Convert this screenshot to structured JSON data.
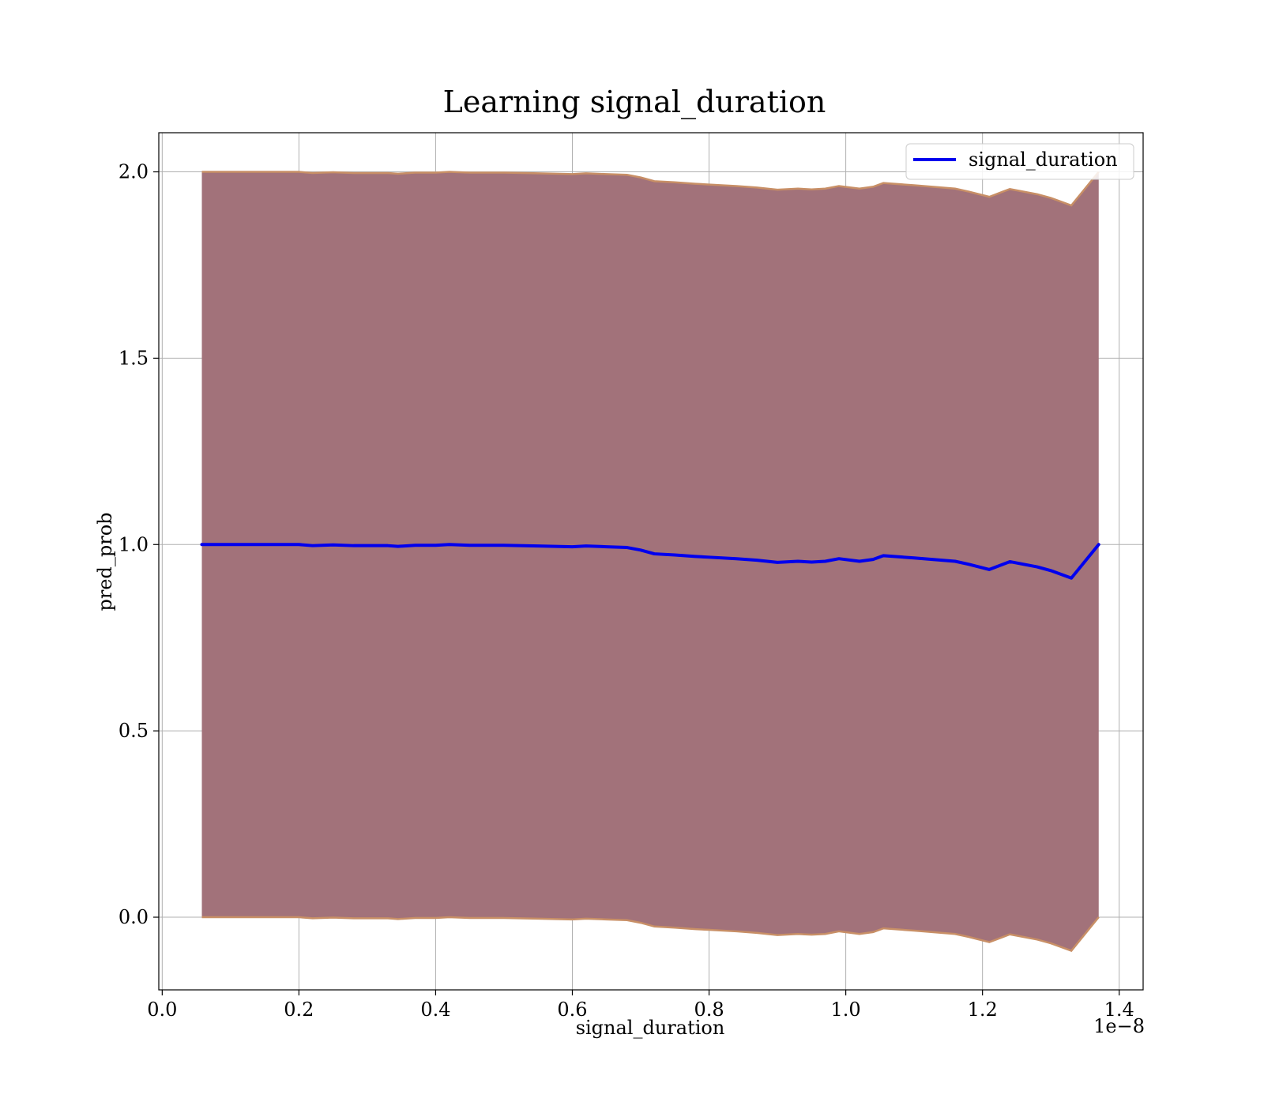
{
  "chart_data": {
    "type": "area",
    "title": "Learning signal_duration",
    "xlabel": "signal_duration",
    "ylabel": "pred_prob",
    "x_offset_label": "1e−8",
    "xlim": [
      -0.005,
      1.435
    ],
    "ylim": [
      -0.195,
      2.105
    ],
    "x_ticks": [
      0.0,
      0.2,
      0.4,
      0.6,
      0.8,
      1.0,
      1.2,
      1.4
    ],
    "x_tick_labels": [
      "0.0",
      "0.2",
      "0.4",
      "0.6",
      "0.8",
      "1.0",
      "1.2",
      "1.4"
    ],
    "y_ticks": [
      0.0,
      0.5,
      1.0,
      1.5,
      2.0
    ],
    "y_tick_labels": [
      "0.0",
      "0.5",
      "1.0",
      "1.5",
      "2.0"
    ],
    "grid": true,
    "legend_placement": "upper-right",
    "colors": {
      "line": "#0000ee",
      "band_fill": "#a2727a",
      "band_edge": "#c88f66",
      "grid": "#b0b0b0",
      "axes": "#000000"
    },
    "series": [
      {
        "name": "signal_duration",
        "x": [
          0.058,
          0.1,
          0.15,
          0.175,
          0.2,
          0.22,
          0.25,
          0.28,
          0.3,
          0.33,
          0.345,
          0.37,
          0.4,
          0.42,
          0.45,
          0.5,
          0.55,
          0.6,
          0.62,
          0.65,
          0.68,
          0.7,
          0.72,
          0.75,
          0.78,
          0.8,
          0.84,
          0.87,
          0.9,
          0.93,
          0.95,
          0.97,
          0.99,
          1.02,
          1.04,
          1.055,
          1.1,
          1.16,
          1.18,
          1.21,
          1.24,
          1.28,
          1.3,
          1.33,
          1.37
        ],
        "y": [
          1.0,
          1.0,
          1.0,
          1.0,
          1.0,
          0.997,
          0.999,
          0.997,
          0.997,
          0.997,
          0.995,
          0.998,
          0.998,
          1.0,
          0.998,
          0.998,
          0.996,
          0.994,
          0.996,
          0.994,
          0.992,
          0.985,
          0.975,
          0.972,
          0.968,
          0.966,
          0.962,
          0.958,
          0.952,
          0.955,
          0.953,
          0.955,
          0.962,
          0.955,
          0.96,
          0.97,
          0.964,
          0.955,
          0.947,
          0.933,
          0.954,
          0.94,
          0.93,
          0.91,
          1.0
        ]
      }
    ],
    "band": {
      "x": [
        0.058,
        0.1,
        0.15,
        0.175,
        0.2,
        0.22,
        0.25,
        0.28,
        0.3,
        0.33,
        0.345,
        0.37,
        0.4,
        0.42,
        0.45,
        0.5,
        0.55,
        0.6,
        0.62,
        0.65,
        0.68,
        0.7,
        0.72,
        0.75,
        0.78,
        0.8,
        0.84,
        0.87,
        0.9,
        0.93,
        0.95,
        0.97,
        0.99,
        1.02,
        1.04,
        1.055,
        1.1,
        1.16,
        1.18,
        1.21,
        1.24,
        1.28,
        1.3,
        1.33,
        1.37
      ],
      "upper": [
        2.0,
        2.0,
        2.0,
        2.0,
        2.0,
        1.997,
        1.999,
        1.997,
        1.997,
        1.997,
        1.995,
        1.998,
        1.998,
        2.0,
        1.998,
        1.998,
        1.996,
        1.994,
        1.996,
        1.994,
        1.992,
        1.985,
        1.975,
        1.972,
        1.968,
        1.966,
        1.962,
        1.958,
        1.952,
        1.955,
        1.953,
        1.955,
        1.962,
        1.955,
        1.96,
        1.97,
        1.964,
        1.955,
        1.947,
        1.933,
        1.954,
        1.94,
        1.93,
        1.91,
        2.0
      ],
      "lower": [
        0.0,
        0.0,
        0.0,
        0.0,
        0.0,
        -0.003,
        -0.001,
        -0.003,
        -0.003,
        -0.003,
        -0.005,
        -0.002,
        -0.002,
        0.0,
        -0.002,
        -0.002,
        -0.004,
        -0.006,
        -0.004,
        -0.006,
        -0.008,
        -0.015,
        -0.025,
        -0.028,
        -0.032,
        -0.034,
        -0.038,
        -0.042,
        -0.048,
        -0.045,
        -0.047,
        -0.045,
        -0.038,
        -0.045,
        -0.04,
        -0.03,
        -0.036,
        -0.045,
        -0.053,
        -0.067,
        -0.046,
        -0.06,
        -0.07,
        -0.09,
        0.0
      ]
    }
  }
}
